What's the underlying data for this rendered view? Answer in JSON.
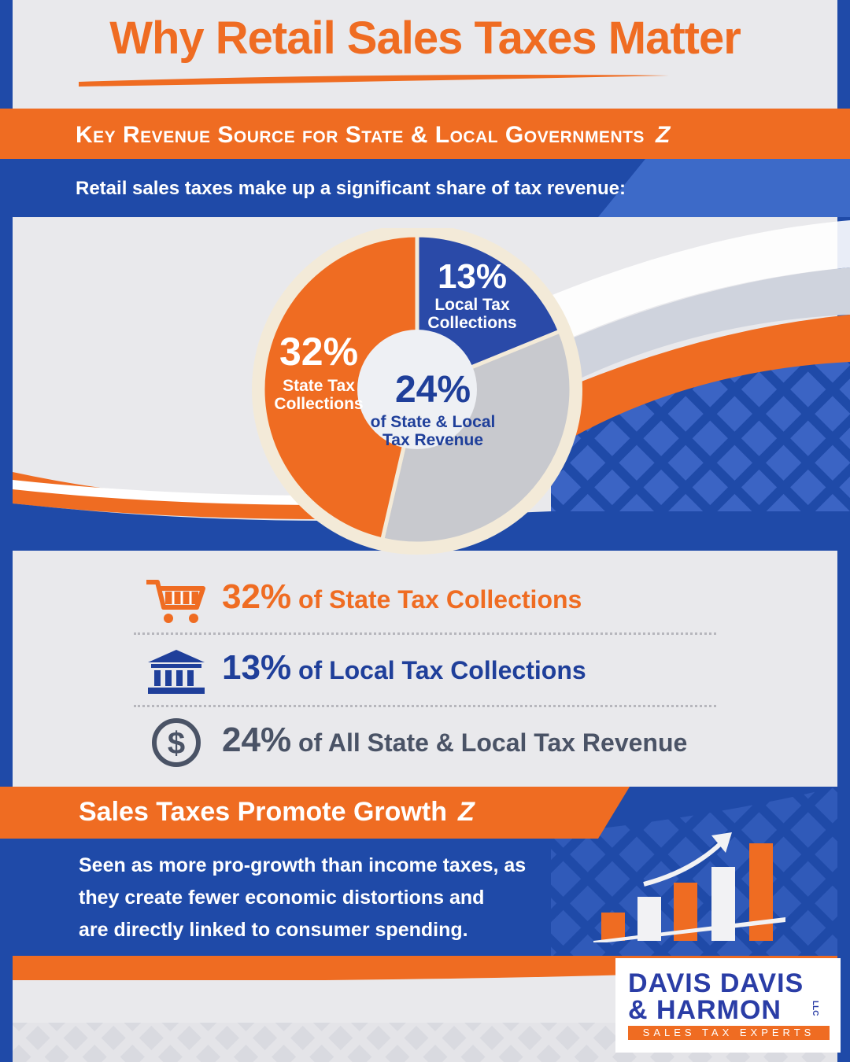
{
  "title": "Why Retail Sales Taxes Matter",
  "section1": {
    "heading": "Key Revenue Source for State & Local Governments",
    "intro": "Retail sales taxes make up a significant share of tax revenue:"
  },
  "chart_data": {
    "type": "pie",
    "slices": [
      {
        "label": "State Tax Collections",
        "value_label": "32%",
        "value": 32,
        "color": "#ef6c22"
      },
      {
        "label": "Local Tax Collections",
        "value_label": "13%",
        "value": 13,
        "color": "#2a4aa8"
      },
      {
        "label": "of State & Local Tax Revenue",
        "value_label": "24%",
        "value": 24,
        "color": "#c8c9ce"
      }
    ],
    "center": {
      "value_label": "24%",
      "line1": "of State & Local",
      "line2": "Tax Revenue"
    },
    "slice_labels": {
      "state_line1": "State Tax",
      "state_line2": "Collections",
      "local_line1": "Local Tax",
      "local_line2": "Collections"
    }
  },
  "stats": [
    {
      "pct": "32%",
      "text": " of State Tax Collections",
      "icon": "shopping-cart-icon",
      "color": "#ef6c22"
    },
    {
      "pct": "13%",
      "text": " of Local Tax Collections",
      "icon": "government-building-icon",
      "color": "#1f3f9a"
    },
    {
      "pct": "24%",
      "text": " of All State & Local Tax Revenue",
      "icon": "dollar-circle-icon",
      "color": "#4a5366"
    }
  ],
  "section2": {
    "heading": "Sales Taxes Promote Growth",
    "body_line1": "Seen as more pro-growth than income taxes, as",
    "body_line2": "they create fewer economic distortions and",
    "body_line3": "are directly linked to consumer spending."
  },
  "logo": {
    "line1": "DAVIS DAVIS",
    "line2": "& HARMON",
    "llc": "LLC",
    "tagline": "SALES TAX EXPERTS"
  },
  "colors": {
    "orange": "#ef6c22",
    "blue": "#1f4aa8",
    "gray": "#c8c9ce"
  }
}
